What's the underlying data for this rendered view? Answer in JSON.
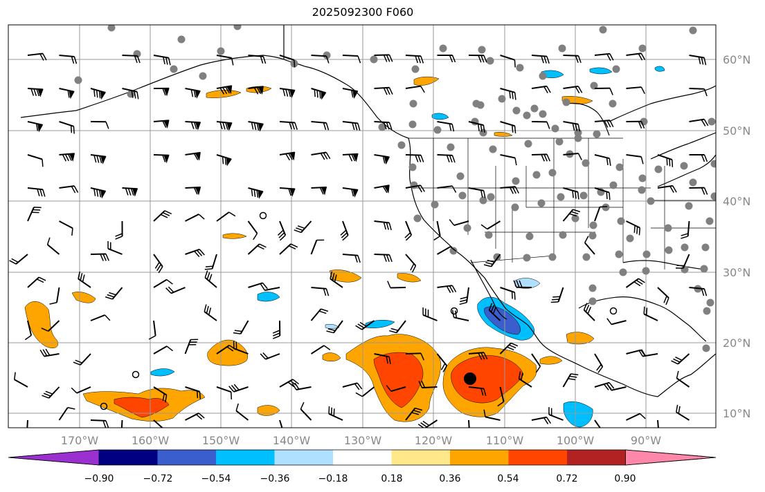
{
  "title": "2025092300 F060",
  "longitude_labels": [
    "170°W",
    "160°W",
    "150°W",
    "140°W",
    "130°W",
    "120°W",
    "110°W",
    "100°W",
    "90°W"
  ],
  "latitude_labels": [
    "60°N",
    "50°N",
    "40°N",
    "30°N",
    "20°N",
    "10°N"
  ],
  "colorbar": {
    "tick_labels": [
      "−0.90",
      "−0.72",
      "−0.54",
      "−0.36",
      "−0.18",
      "0.18",
      "0.36",
      "0.54",
      "0.72",
      "0.90"
    ],
    "colors": [
      "#9b30d0",
      "#000080",
      "#3a5fcd",
      "#00bfff",
      "#b0e0ff",
      "#ffffff",
      "#ffe88a",
      "#ffa500",
      "#ff4500",
      "#b22222",
      "#ff88aa"
    ]
  },
  "colors": {
    "grid": "#999999",
    "coast": "#000000",
    "station_dot": "#808080",
    "wind_barb": "#000000"
  }
}
